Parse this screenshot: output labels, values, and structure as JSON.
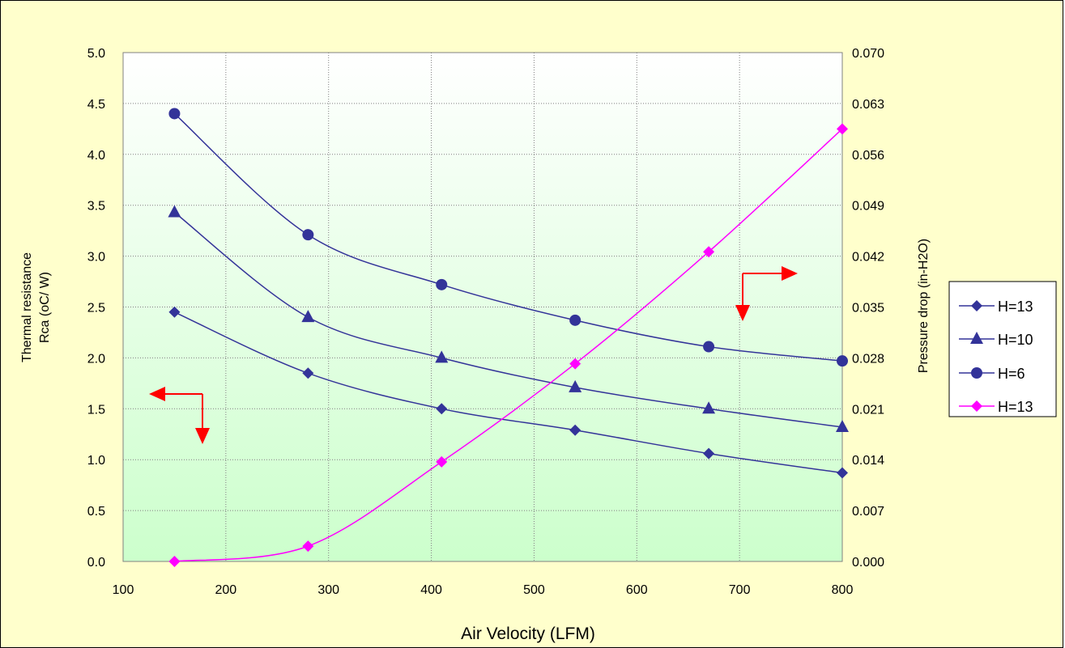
{
  "chart_data": {
    "type": "line",
    "xlabel": "Air Velocity (LFM)",
    "ylabel_left": [
      "Thermal resistance",
      "Rca (oC/ W)"
    ],
    "ylabel_right": "Pressure drop (in-H2O)",
    "xlim": [
      100,
      800
    ],
    "ylim_left": [
      0,
      5
    ],
    "ylim_right": [
      0,
      0.07
    ],
    "x_ticks": [
      "100",
      "200",
      "300",
      "400",
      "500",
      "600",
      "700",
      "800"
    ],
    "y_left_ticks": [
      "0.0",
      "0.5",
      "1.0",
      "1.5",
      "2.0",
      "2.5",
      "3.0",
      "3.5",
      "4.0",
      "4.5",
      "5.0"
    ],
    "y_right_ticks": [
      "0.000",
      "0.007",
      "0.014",
      "0.021",
      "0.028",
      "0.035",
      "0.042",
      "0.049",
      "0.056",
      "0.063",
      "0.070"
    ],
    "grid": true,
    "legend_position": "right",
    "x": [
      150,
      280,
      410,
      540,
      670,
      800
    ],
    "series": [
      {
        "name": "H=13",
        "axis": "left",
        "marker": "diamond",
        "color": "#333399",
        "values": [
          2.45,
          1.85,
          1.5,
          1.29,
          1.06,
          0.87
        ]
      },
      {
        "name": "H=10",
        "axis": "left",
        "marker": "triangle",
        "color": "#333399",
        "values": [
          3.43,
          2.4,
          2.0,
          1.71,
          1.5,
          1.32
        ]
      },
      {
        "name": "H=6",
        "axis": "left",
        "marker": "circle",
        "color": "#333399",
        "values": [
          4.4,
          3.21,
          2.72,
          2.37,
          2.11,
          1.97
        ]
      },
      {
        "name": "H=13",
        "axis": "right",
        "marker": "diamond",
        "color": "#ff00ff",
        "values": [
          0.0,
          0.0021,
          0.0137,
          0.0272,
          0.0426,
          0.0595
        ]
      }
    ],
    "annotations": [
      {
        "type": "arrow",
        "meaning": "left curves use left axis",
        "color": "#ff0000"
      },
      {
        "type": "arrow",
        "meaning": "pink curve uses right axis",
        "color": "#ff0000"
      }
    ]
  }
}
